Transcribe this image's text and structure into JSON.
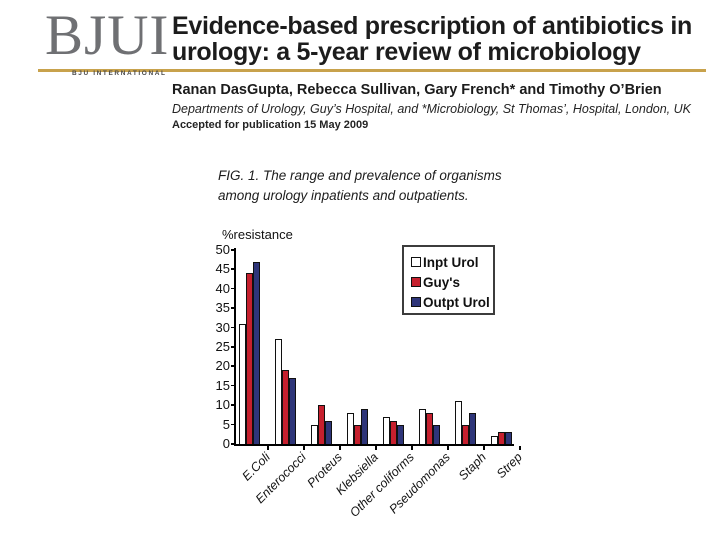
{
  "header": {
    "logo_text": "BJUI",
    "logo_subtext": "BJU INTERNATIONAL",
    "accent_color": "#C8A24C",
    "title_lines": [
      "Evidence-based prescription of antibiotics in",
      "urology: a 5-year review of microbiology"
    ],
    "authors": "Ranan DasGupta, Rebecca Sullivan, Gary French* and Timothy O’Brien",
    "affiliation": "Departments of Urology, Guy’s Hospital, and *Microbiology, St Thomas’, Hospital, London, UK",
    "accepted": "Accepted for publication 15 May 2009"
  },
  "figure": {
    "caption_lines": [
      "FIG. 1. The range and prevalence of organisms",
      "among urology inpatients and outpatients."
    ]
  },
  "chart_data": {
    "type": "bar",
    "title": "",
    "ylabel": "%resistance",
    "xlabel": "",
    "ylim": [
      0,
      50
    ],
    "yticks": [
      0,
      5,
      10,
      15,
      20,
      25,
      30,
      35,
      40,
      45,
      50
    ],
    "grid": false,
    "legend_position": "top-right",
    "categories": [
      "E.Coli",
      "Enterococci",
      "Proteus",
      "Klebsiella",
      "Other coliforms",
      "Pseudomonas",
      "Staph",
      "Strep"
    ],
    "series": [
      {
        "name": "Inpt Urol",
        "color": "#FFFFFF",
        "values": [
          31,
          27,
          5,
          8,
          7,
          9,
          11,
          2
        ]
      },
      {
        "name": "Guy's",
        "color": "#C6202E",
        "values": [
          44,
          19,
          10,
          5,
          6,
          8,
          5,
          3
        ]
      },
      {
        "name": "Outpt Urol",
        "color": "#2E3579",
        "values": [
          47,
          17,
          6,
          9,
          5,
          5,
          8,
          3
        ]
      }
    ]
  }
}
